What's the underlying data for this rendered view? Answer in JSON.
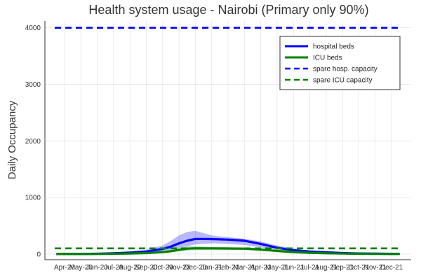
{
  "chart_data": {
    "type": "line",
    "title": "Health system usage - Nairobi (Primary only 90%)",
    "xlabel": "",
    "ylabel": "Daily Occupancy",
    "ylim": [
      -100,
      4120
    ],
    "yticks": [
      0,
      1000,
      2000,
      3000,
      4000
    ],
    "xticks": [
      "Apr-20",
      "May-20",
      "Jun-20",
      "Jul-20",
      "Aug-20",
      "Sep-20",
      "Oct-20",
      "Nov-20",
      "Dec-20",
      "Jan-21",
      "Feb-21",
      "Mar-21",
      "Apr-21",
      "May-21",
      "Jun-21",
      "Jul-21",
      "Aug-21",
      "Sep-21",
      "Oct-21",
      "Nov-21",
      "Dec-21"
    ],
    "grid": true,
    "legend_position": "top-right",
    "x_months": [
      -0.5,
      0,
      1,
      2,
      3,
      4,
      5,
      6,
      6.5,
      7,
      7.5,
      8,
      9,
      10,
      11,
      12,
      13,
      14,
      15,
      16,
      17,
      18,
      19,
      20,
      20.5
    ],
    "series": [
      {
        "name": "hospital beds",
        "color": "#0000ff",
        "style": "solid",
        "values": [
          0,
          0,
          2,
          5,
          12,
          25,
          45,
          90,
          130,
          190,
          235,
          268,
          265,
          255,
          235,
          180,
          110,
          70,
          45,
          30,
          18,
          10,
          6,
          4,
          3
        ],
        "band_low": [
          0,
          0,
          1,
          3,
          7,
          15,
          28,
          55,
          80,
          110,
          140,
          170,
          190,
          180,
          160,
          120,
          75,
          45,
          30,
          20,
          12,
          7,
          4,
          2,
          2
        ],
        "band_high": [
          0,
          0,
          3,
          8,
          20,
          40,
          75,
          150,
          230,
          330,
          390,
          410,
          330,
          300,
          270,
          220,
          150,
          95,
          60,
          40,
          25,
          15,
          9,
          6,
          4
        ]
      },
      {
        "name": "ICU beds",
        "color": "#008000",
        "style": "solid",
        "values": [
          0,
          0,
          1,
          2,
          5,
          10,
          18,
          35,
          50,
          75,
          95,
          102,
          100,
          98,
          95,
          80,
          55,
          35,
          22,
          14,
          9,
          5,
          3,
          2,
          1
        ],
        "band_low": [
          0,
          0,
          0,
          1,
          3,
          6,
          11,
          22,
          32,
          45,
          60,
          70,
          75,
          72,
          68,
          55,
          38,
          24,
          15,
          9,
          6,
          3,
          2,
          1,
          1
        ],
        "band_high": [
          0,
          0,
          2,
          4,
          8,
          15,
          28,
          55,
          80,
          110,
          135,
          140,
          125,
          120,
          115,
          100,
          75,
          48,
          30,
          20,
          13,
          8,
          5,
          3,
          2
        ]
      },
      {
        "name": "spare hosp. capacity",
        "color": "#0000ff",
        "style": "dashed",
        "constant": 4000
      },
      {
        "name": "spare ICU capacity",
        "color": "#008000",
        "style": "dashed",
        "constant": 100
      }
    ]
  }
}
